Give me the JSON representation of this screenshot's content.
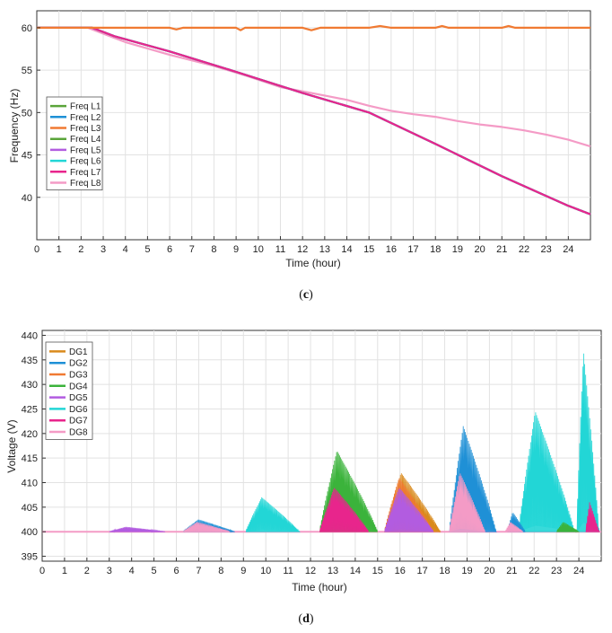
{
  "chart_data": [
    {
      "type": "line",
      "panel_label": "c",
      "xlabel": "Time (hour)",
      "ylabel": "Frequency (Hz)",
      "xlim": [
        0,
        25
      ],
      "ylim": [
        35,
        62
      ],
      "xticks": [
        0,
        1,
        2,
        3,
        4,
        5,
        6,
        7,
        8,
        9,
        10,
        11,
        12,
        13,
        14,
        15,
        16,
        17,
        18,
        19,
        20,
        21,
        22,
        23,
        24
      ],
      "yticks": [
        40,
        45,
        50,
        55,
        60
      ],
      "grid": true,
      "legend_position": "left-middle",
      "series": [
        {
          "name": "Freq L1",
          "color": "#5aa43a",
          "x": [
            0,
            2.5,
            3.5,
            6,
            9,
            12,
            15,
            18,
            21,
            24,
            25
          ],
          "y": [
            60,
            60,
            59,
            57.2,
            54.8,
            52.3,
            50,
            46.3,
            42.5,
            39,
            38
          ]
        },
        {
          "name": "Freq L2",
          "color": "#1f90d6",
          "x": [
            0,
            2.5,
            3.5,
            6,
            9,
            12,
            15,
            18,
            21,
            24,
            25
          ],
          "y": [
            60,
            60,
            59,
            57.2,
            54.8,
            52.3,
            50,
            46.3,
            42.5,
            39,
            38
          ]
        },
        {
          "name": "Freq L3",
          "color": "#f07a32",
          "x": [
            0,
            3,
            6,
            6.3,
            6.6,
            9,
            9.2,
            9.4,
            12,
            12.4,
            12.8,
            15,
            15.5,
            16,
            18,
            18.3,
            18.6,
            21,
            21.3,
            21.6,
            24,
            25
          ],
          "y": [
            60,
            60,
            60,
            59.8,
            60,
            60,
            59.7,
            60,
            60,
            59.7,
            60,
            60,
            60.2,
            60,
            60,
            60.2,
            60,
            60,
            60.2,
            60,
            60,
            60
          ]
        },
        {
          "name": "Freq L4",
          "color": "#5aa43a",
          "x": [
            0,
            2.5,
            3.5,
            6,
            9,
            12,
            15,
            18,
            21,
            24,
            25
          ],
          "y": [
            60,
            60,
            59,
            57.2,
            54.8,
            52.3,
            50,
            46.3,
            42.5,
            39,
            38
          ]
        },
        {
          "name": "Freq L5",
          "color": "#b25ce0",
          "x": [
            0,
            2.5,
            3.5,
            6,
            9,
            12,
            15,
            18,
            21,
            24,
            25
          ],
          "y": [
            60,
            60,
            59,
            57.2,
            54.8,
            52.3,
            50,
            46.3,
            42.5,
            39,
            38
          ]
        },
        {
          "name": "Freq L6",
          "color": "#22d6d6",
          "x": [
            0,
            2.5,
            3.5,
            6,
            9,
            12,
            15,
            18,
            21,
            24,
            25
          ],
          "y": [
            60,
            60,
            59,
            57.2,
            54.8,
            52.3,
            50,
            46.3,
            42.5,
            39,
            38
          ]
        },
        {
          "name": "Freq L7",
          "color": "#e8258c",
          "x": [
            0,
            2.5,
            3.5,
            6,
            9,
            12,
            15,
            18,
            21,
            24,
            25
          ],
          "y": [
            60,
            60,
            59,
            57.2,
            54.8,
            52.3,
            50,
            46.3,
            42.5,
            39,
            38
          ]
        },
        {
          "name": "Freq L8",
          "color": "#f49bc6",
          "x": [
            0,
            2.3,
            3,
            4,
            6,
            8,
            9.5,
            11,
            12,
            13,
            14,
            15,
            16,
            17,
            18,
            19,
            20,
            21,
            22,
            23,
            24,
            25
          ],
          "y": [
            60,
            60,
            59.3,
            58.3,
            56.8,
            55.5,
            54.3,
            53,
            52.5,
            52,
            51.5,
            50.8,
            50.2,
            49.8,
            49.5,
            49,
            48.6,
            48.3,
            47.9,
            47.4,
            46.8,
            46
          ]
        }
      ]
    },
    {
      "type": "line",
      "panel_label": "d",
      "xlabel": "Time (hour)",
      "ylabel": "Voltage (V)",
      "xlim": [
        0,
        25
      ],
      "ylim": [
        394,
        441
      ],
      "xticks": [
        0,
        1,
        2,
        3,
        4,
        5,
        6,
        7,
        8,
        9,
        10,
        11,
        12,
        13,
        14,
        15,
        16,
        17,
        18,
        19,
        20,
        21,
        22,
        23,
        24
      ],
      "yticks": [
        395,
        400,
        405,
        410,
        415,
        420,
        425,
        430,
        435,
        440
      ],
      "grid": true,
      "legend_position": "top-left",
      "series": [
        {
          "name": "DG1",
          "color": "#d98a1c",
          "bursts": [
            {
              "start": 15.3,
              "end": 17.8,
              "peak": 412
            }
          ]
        },
        {
          "name": "DG2",
          "color": "#1f90d6",
          "bursts": [
            {
              "start": 6.3,
              "end": 8.6,
              "peak": 402.5
            },
            {
              "start": 18.2,
              "end": 20.3,
              "peak": 421.5
            },
            {
              "start": 20.8,
              "end": 21.6,
              "peak": 404
            }
          ]
        },
        {
          "name": "DG3",
          "color": "#f07a32",
          "bursts": [
            {
              "start": 15.3,
              "end": 17.5,
              "peak": 411
            }
          ]
        },
        {
          "name": "DG4",
          "color": "#3bb33b",
          "bursts": [
            {
              "start": 12.4,
              "end": 15.0,
              "peak": 416.5
            },
            {
              "start": 23.0,
              "end": 24.0,
              "peak": 402
            }
          ]
        },
        {
          "name": "DG5",
          "color": "#b25ce0",
          "bursts": [
            {
              "start": 3.0,
              "end": 5.5,
              "peak": 401
            },
            {
              "start": 15.3,
              "end": 17.5,
              "peak": 409
            }
          ]
        },
        {
          "name": "DG6",
          "color": "#22d6d6",
          "bursts": [
            {
              "start": 9.1,
              "end": 11.5,
              "peak": 407
            },
            {
              "start": 21.3,
              "end": 23.8,
              "peak": 424.5
            },
            {
              "start": 23.9,
              "end": 24.9,
              "peak": 437
            }
          ]
        },
        {
          "name": "DG7",
          "color": "#e8258c",
          "bursts": [
            {
              "start": 12.4,
              "end": 14.6,
              "peak": 409
            },
            {
              "start": 24.3,
              "end": 24.9,
              "peak": 406
            }
          ]
        },
        {
          "name": "DG8",
          "color": "#f49bc6",
          "bursts": [
            {
              "start": 6.3,
              "end": 8.4,
              "peak": 402
            },
            {
              "start": 18.2,
              "end": 19.8,
              "peak": 412
            },
            {
              "start": 20.7,
              "end": 21.5,
              "peak": 402
            }
          ]
        }
      ]
    }
  ]
}
